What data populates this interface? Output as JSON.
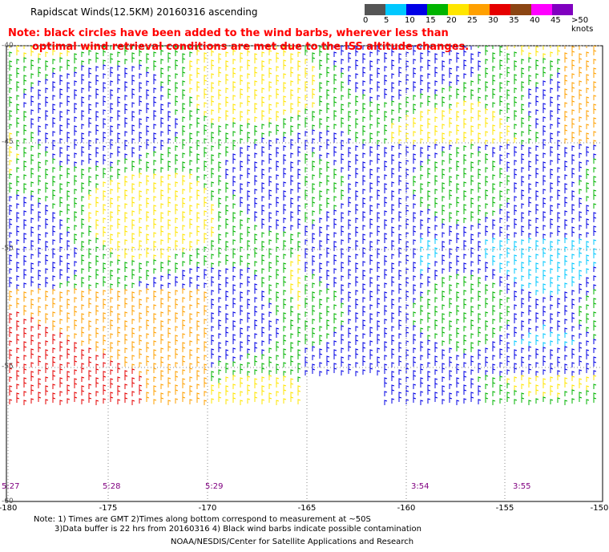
{
  "header": {
    "title": "Rapidscat Winds(12.5KM) 20160316 ascending",
    "note_line1": "Note: black circles have been added to the wind barbs, wherever less than",
    "note_line2": "optimal wind retrieval conditions are met due to the ISS altitude changes."
  },
  "scale": {
    "labels": [
      "0",
      "5",
      "10",
      "15",
      "20",
      "25",
      "30",
      "35",
      "40",
      "45",
      ">50 knots"
    ],
    "colors": [
      "#555555",
      "#00c8ff",
      "#0000e6",
      "#00b400",
      "#ffe600",
      "#ffa000",
      "#e60000",
      "#8b4513",
      "#ff00ff",
      "#8000c0",
      "#000000"
    ]
  },
  "map": {
    "lon_labels": [
      "-180",
      "-175",
      "-170",
      "-165",
      "-160",
      "-155",
      "-150"
    ],
    "lat_labels": [
      "-40",
      "-45",
      "-50",
      "-55",
      "-60"
    ],
    "time_labels": [
      "5:27",
      "5:28",
      "5:29",
      "3:54",
      "3:55"
    ]
  },
  "footer": {
    "line1": "Note: 1) Times are GMT 2)Times along bottom correspond to measurement at ~50S",
    "line2": "3)Data buffer is 22 hrs from 20160316 4) Black wind barbs indicate possible contamination",
    "line3": "NOAA/NESDIS/Center for Satellite Applications and Research"
  }
}
